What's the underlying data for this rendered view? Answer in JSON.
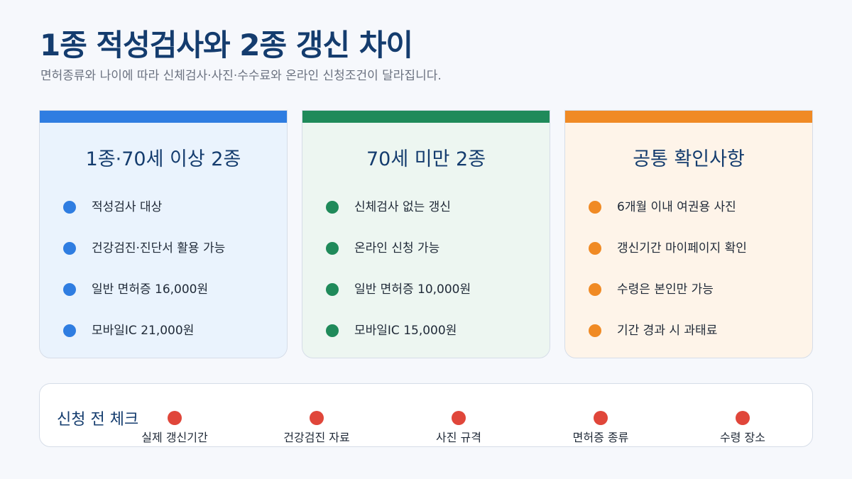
{
  "header": {
    "title": "1종 적성검사와 2종 갱신 차이",
    "subtitle": "면허종류와 나이에 따라 신체검사·사진·수수료와 온라인 신청조건이 달라집니다."
  },
  "cards": [
    {
      "title": "1종·70세 이상 2종",
      "accent": "#2f7de1",
      "background": "#eaf3fd",
      "items": [
        "적성검사 대상",
        "건강검진·진단서 활용 가능",
        "일반 면허증 16,000원",
        "모바일IC 21,000원"
      ]
    },
    {
      "title": "70세 미만 2종",
      "accent": "#1f8a5a",
      "background": "#edf6f1",
      "items": [
        "신체검사 없는 갱신",
        "온라인 신청 가능",
        "일반 면허증 10,000원",
        "모바일IC 15,000원"
      ]
    },
    {
      "title": "공통 확인사항",
      "accent": "#f08a24",
      "background": "#fef4e9",
      "items": [
        "6개월 이내 여권용 사진",
        "갱신기간 마이페이지 확인",
        "수령은 본인만 가능",
        "기간 경과 시 과태료"
      ]
    }
  ],
  "checklist": {
    "title": "신청 전 체크",
    "accent": "#e0463a",
    "items": [
      "실제 갱신기간",
      "건강검진 자료",
      "사진 규격",
      "면허증 종류",
      "수령 장소"
    ]
  }
}
